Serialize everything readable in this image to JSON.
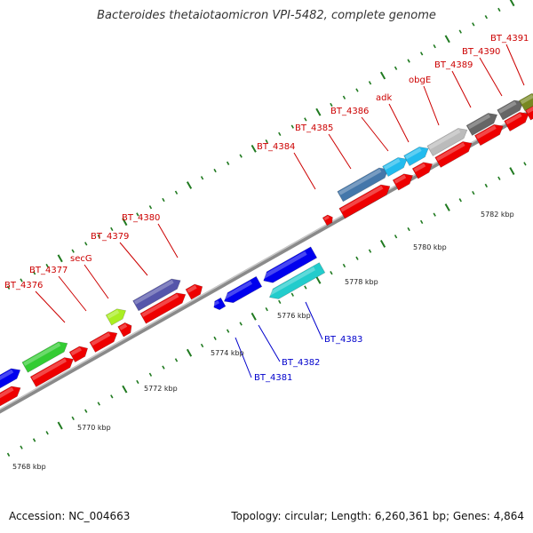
{
  "title": "Bacteroides thetaiotaomicron VPI-5482, complete genome",
  "footer": {
    "accession": "Accession: NC_004663",
    "summary": "Topology: circular; Length: 6,260,361 bp; Genes: 4,864"
  },
  "colors": {
    "forward_label": "#cc0000",
    "reverse_label": "#0000cc",
    "cds_red": "#ee0000",
    "backbone": "#8a8a8a",
    "tick": "#207a20"
  },
  "kbp_labels": [
    "5768 kbp",
    "5770 kbp",
    "5772 kbp",
    "5774 kbp",
    "5776 kbp",
    "5778 kbp",
    "5780 kbp",
    "5782 kbp"
  ],
  "forward_gene_labels": [
    "BT_4376",
    "BT_4377",
    "secG",
    "BT_4379",
    "BT_4380",
    "BT_4384",
    "BT_4385",
    "BT_4386",
    "adk",
    "obgE",
    "BT_4389",
    "BT_4390",
    "BT_4391"
  ],
  "reverse_gene_labels": [
    "BT_4381",
    "BT_4382",
    "BT_4383"
  ]
}
